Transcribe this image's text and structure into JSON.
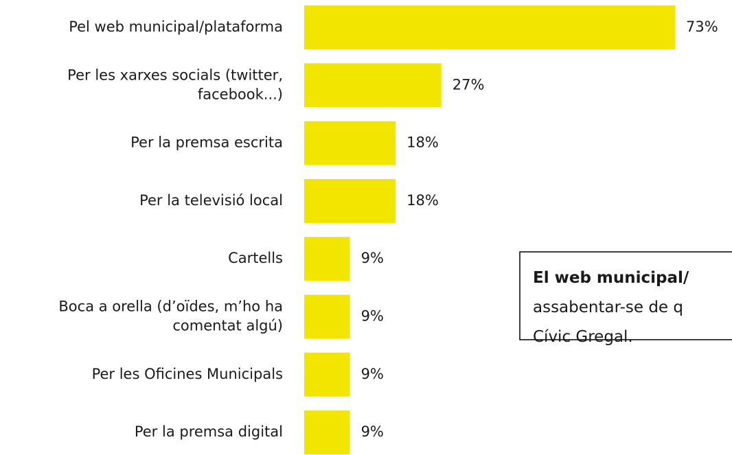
{
  "chart_data": {
    "type": "hbar",
    "categories": [
      "Pel web municipal/plataforma",
      "Per les xarxes socials (twitter,\nfacebook...)",
      "Per la premsa escrita",
      "Per la televisió local",
      "Cartells",
      "Boca a orella (d’oïdes, m’ho ha\ncomentat algú)",
      "Per les Oficines Municipals",
      "Per la premsa digital"
    ],
    "values": [
      73,
      27,
      18,
      18,
      9,
      9,
      9,
      9
    ],
    "value_labels": [
      "73%",
      "27%",
      "18%",
      "18%",
      "9%",
      "9%",
      "9%",
      "9%"
    ],
    "color": "#f2e600",
    "annotation": [
      "El web municipal/",
      "assabentar-se de q",
      "Cívic Gregal."
    ]
  }
}
